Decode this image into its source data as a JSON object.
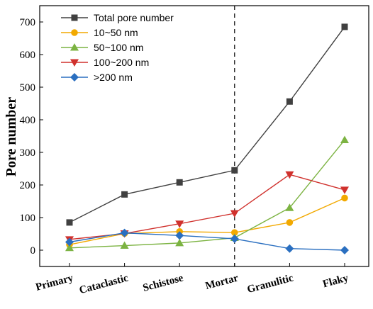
{
  "chart_data": {
    "type": "line",
    "title": "",
    "xlabel": "",
    "ylabel": "Pore number",
    "ylim": [
      -50,
      750
    ],
    "yticks": [
      0,
      100,
      200,
      300,
      400,
      500,
      600,
      700
    ],
    "categories": [
      "Primary",
      "Cataclastic",
      "Schistose",
      "Mortar",
      "Granulitic",
      "Flaky"
    ],
    "divider_after_category": "Mortar",
    "legend_position": "top-left",
    "series": [
      {
        "name": "Total pore number",
        "color": "#404040",
        "marker": "square",
        "values": [
          85,
          171,
          208,
          245,
          456,
          685
        ]
      },
      {
        "name": "10~50 nm",
        "color": "#f2a900",
        "marker": "circle",
        "values": [
          17,
          51,
          57,
          54,
          85,
          160
        ]
      },
      {
        "name": "50~100 nm",
        "color": "#7cb342",
        "marker": "triangle-up",
        "values": [
          7,
          14,
          22,
          38,
          130,
          338
        ]
      },
      {
        "name": "100~200 nm",
        "color": "#d0312d",
        "marker": "triangle-down",
        "values": [
          33,
          51,
          81,
          113,
          232,
          185
        ]
      },
      {
        "name": ">200 nm",
        "color": "#2a6fc0",
        "marker": "diamond",
        "values": [
          25,
          53,
          45,
          35,
          5,
          0
        ]
      }
    ]
  }
}
